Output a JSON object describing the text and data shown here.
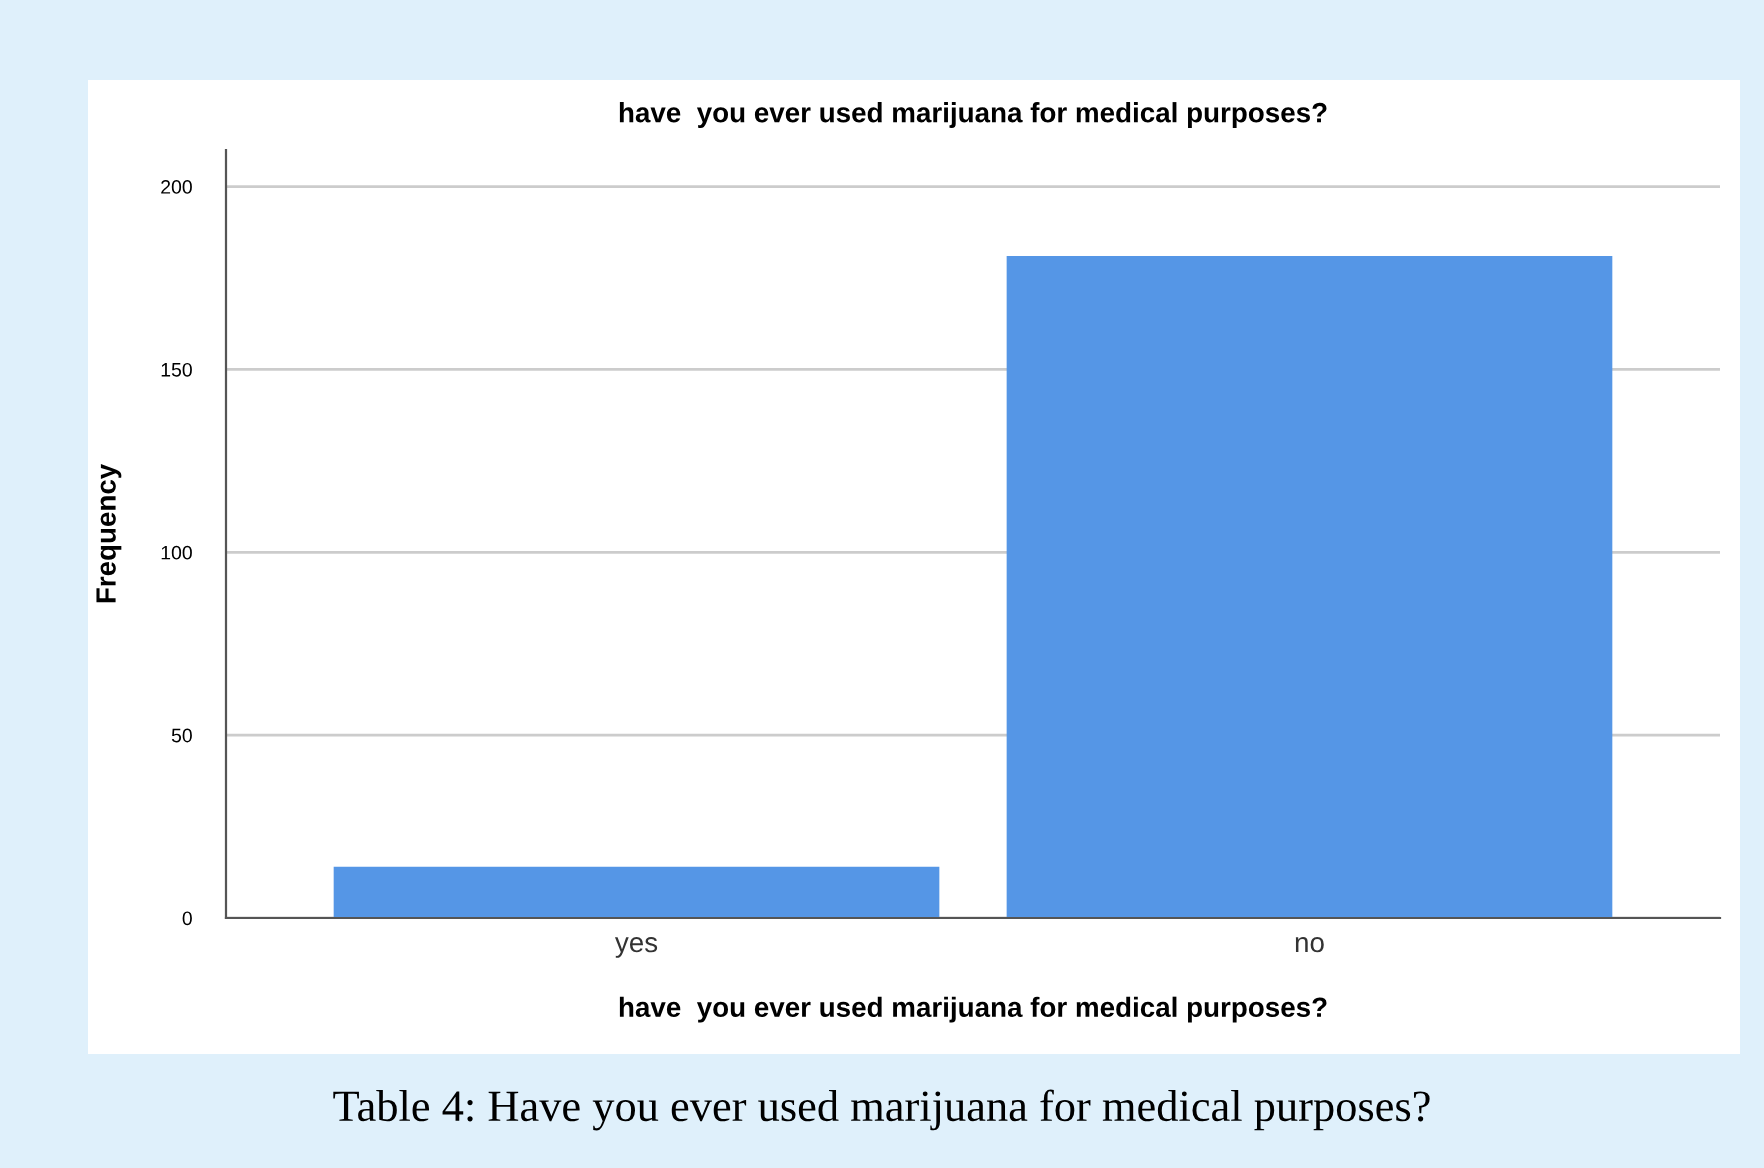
{
  "chart_data": {
    "type": "bar",
    "title": "have  you ever used marijuana for medical purposes?",
    "xlabel": "have  you ever used marijuana for medical purposes?",
    "ylabel": "Frequency",
    "categories": [
      "yes",
      "no"
    ],
    "values": [
      14,
      181
    ],
    "color": "#5596e6",
    "ylim": [
      0,
      210
    ],
    "yticks": [
      0,
      50,
      100,
      150,
      200
    ],
    "grid": "y",
    "annotations": [
      "Table 4: Have you ever used marijuana for medical purposes?"
    ]
  }
}
